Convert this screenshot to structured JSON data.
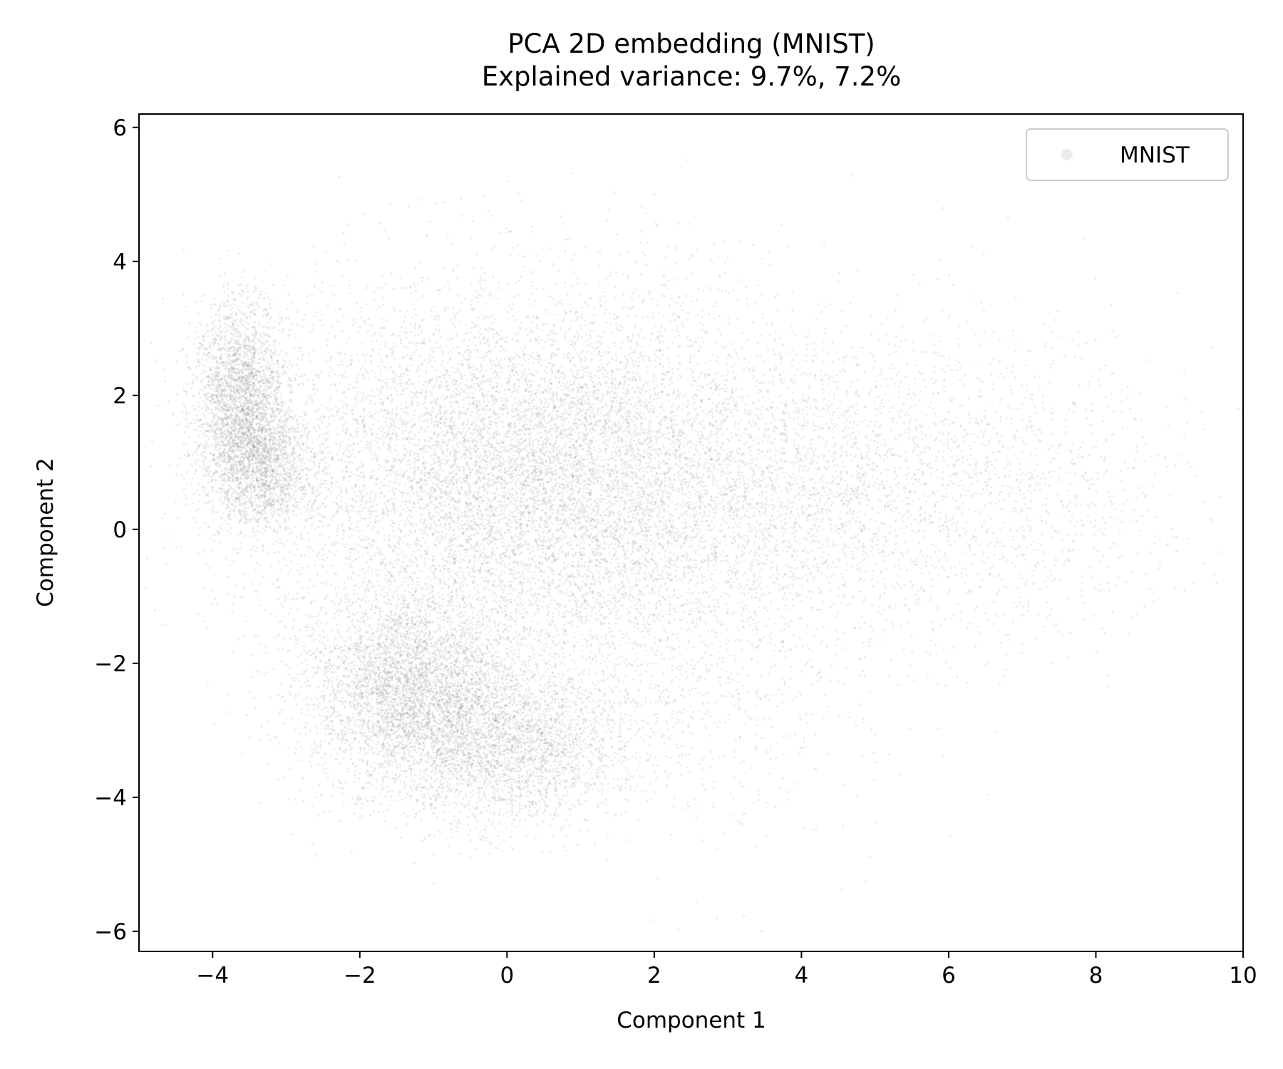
{
  "chart_data": {
    "type": "scatter",
    "title": "PCA 2D embedding (MNIST)",
    "subtitle": "Explained variance: 9.7%, 7.2%",
    "xlabel": "Component 1",
    "ylabel": "Component 2",
    "xlim": [
      -5,
      10
    ],
    "ylim": [
      -6.3,
      6.2
    ],
    "xticks": [
      -4,
      -2,
      0,
      2,
      4,
      6,
      8,
      10
    ],
    "xtick_labels": [
      "−4",
      "−2",
      "0",
      "2",
      "4",
      "6",
      "8",
      "10"
    ],
    "yticks": [
      6,
      4,
      2,
      0,
      -2,
      -4,
      -6
    ],
    "ytick_labels": [
      "6",
      "4",
      "2",
      "0",
      "−2",
      "−4",
      "−6"
    ],
    "grid": false,
    "legend_position": "top-right",
    "marker_color": "#7f7f7f",
    "marker_opacity": 0.06,
    "series": [
      {
        "name": "MNIST",
        "clusters": [
          {
            "cx": -3.6,
            "cy": 1.9,
            "sx": 0.32,
            "sy": 0.75,
            "weight": 0.11
          },
          {
            "cx": -3.3,
            "cy": 0.9,
            "sx": 0.35,
            "sy": 0.45,
            "weight": 0.05
          },
          {
            "cx": -1.3,
            "cy": -2.3,
            "sx": 0.75,
            "sy": 0.75,
            "weight": 0.16
          },
          {
            "cx": 0.0,
            "cy": -3.2,
            "sx": 0.9,
            "sy": 0.6,
            "weight": 0.12
          },
          {
            "cx": -0.3,
            "cy": 0.9,
            "sx": 1.7,
            "sy": 1.3,
            "weight": 0.28
          },
          {
            "cx": 1.2,
            "cy": 0.6,
            "sx": 1.1,
            "sy": 1.4,
            "weight": 0.1
          },
          {
            "cx": 4.0,
            "cy": 0.7,
            "sx": 1.4,
            "sy": 1.2,
            "weight": 0.1
          },
          {
            "cx": 6.8,
            "cy": 0.6,
            "sx": 1.3,
            "sy": 1.2,
            "weight": 0.04
          },
          {
            "cx": 2.5,
            "cy": -1.6,
            "sx": 1.2,
            "sy": 1.5,
            "weight": 0.04
          }
        ]
      }
    ]
  }
}
